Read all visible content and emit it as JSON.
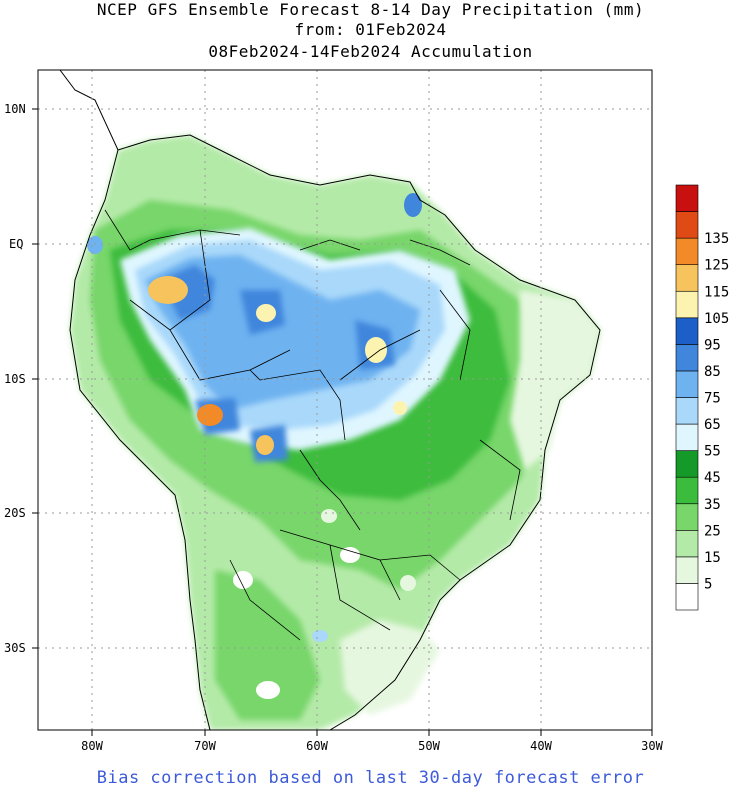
{
  "header": {
    "title_line1": "NCEP GFS Ensemble Forecast 8-14 Day Precipitation (mm)",
    "title_line2": "from: 01Feb2024",
    "title_line3": "08Feb2024-14Feb2024 Accumulation"
  },
  "axes": {
    "lat_labels": [
      "10N",
      "EQ",
      "10S",
      "20S",
      "30S"
    ],
    "lon_labels": [
      "80W",
      "70W",
      "60W",
      "50W",
      "40W",
      "30W"
    ]
  },
  "colorbar": {
    "labels": [
      "5",
      "15",
      "25",
      "35",
      "45",
      "55",
      "65",
      "75",
      "85",
      "95",
      "105",
      "115",
      "125",
      "135"
    ],
    "colors": [
      "#ffffff",
      "#e6f7e0",
      "#b4eaa8",
      "#78d66a",
      "#3cbc3c",
      "#159a2a",
      "#dff6ff",
      "#a9d8fa",
      "#6eb2f0",
      "#3f86dc",
      "#1d5fc8",
      "#fdf3b0",
      "#f6c35c",
      "#f28a28",
      "#e04a14",
      "#c91010"
    ]
  },
  "footer": {
    "text": "Bias correction based on last 30-day forecast error"
  }
}
